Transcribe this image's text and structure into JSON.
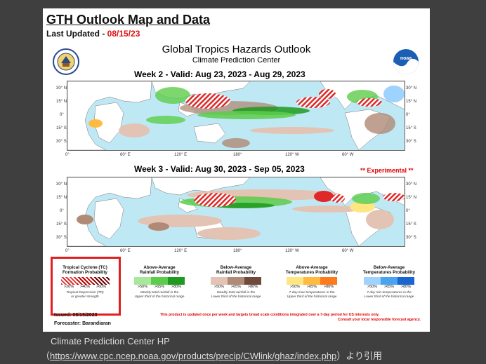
{
  "header": {
    "title": "GTH Outlook Map and Data",
    "last_updated_label": "Last Updated - ",
    "last_updated_date": "08/15/23"
  },
  "map_header": {
    "title": "Global Tropics Hazards Outlook",
    "subtitle": "Climate Prediction Center"
  },
  "week2": {
    "label": "Week 2 - Valid: Aug 23, 2023 - Aug 29, 2023"
  },
  "week3": {
    "label": "Week 3 - Valid: Aug 30, 2023 - Sep 05, 2023",
    "experimental": "** Experimental **"
  },
  "lat_labels": [
    "30° N",
    "15° N",
    "0°",
    "15° S",
    "30° S"
  ],
  "lon_labels": [
    "0°",
    "60° E",
    "120° E",
    "180°",
    "120° W",
    "60° W"
  ],
  "legend": {
    "tc": {
      "title1": "Tropical Cyclone (TC)",
      "title2": "Formation Probability",
      "values": [
        ">20%",
        ">40%",
        ">60%"
      ],
      "note1": "Tropical Depression (TD)",
      "note2": "or greater strength",
      "colors": [
        "#e03030",
        "#c00000",
        "#700000"
      ]
    },
    "above_rain": {
      "title1": "Above-Average",
      "title2": "Rainfall Probability",
      "values": [
        ">50%",
        ">65%",
        ">80%"
      ],
      "note1": "Weekly total rainfall in the",
      "note2": "Upper third of the historical range",
      "colors": [
        "#a8e89a",
        "#5ccd4a",
        "#1e9a1e"
      ]
    },
    "below_rain": {
      "title1": "Below-Average",
      "title2": "Rainfall Probability",
      "values": [
        ">50%",
        ">65%",
        ">80%"
      ],
      "note1": "Weekly total rainfall in the",
      "note2": "Lower third of the historical range",
      "colors": [
        "#e3c3b3",
        "#b08a76",
        "#6e4a3c"
      ]
    },
    "above_temp": {
      "title1": "Above-Average",
      "title2": "Temperatures Probability",
      "values": [
        ">50%",
        ">65%",
        ">80%"
      ],
      "note1": "7-day max temperatures in the",
      "note2": "Upper third of the historical range",
      "colors": [
        "#ffe680",
        "#ffbb40",
        "#ff7a1a"
      ]
    },
    "below_temp": {
      "title1": "Below-Average",
      "title2": "Temperatures Probability",
      "values": [
        ">50%",
        ">65%",
        ">80%"
      ],
      "note1": "7-day min temperatures in the",
      "note2": "Lower third of the historical range",
      "colors": [
        "#9fd3ff",
        "#4aa3f0",
        "#1a66d0"
      ]
    }
  },
  "footer": {
    "issued": "Issued: 08/15/2023",
    "forecaster": "Forecaster: Barandiaran",
    "note1": "This product is updated once per week and targets broad scale conditions integrated over a 7-day period for US interests only.",
    "note2": "Consult your local responsible forecast agency."
  },
  "caption": {
    "line1": "Climate Prediction Center HP",
    "open": "（",
    "url": "https://www.cpc.ncep.noaa.gov/products/precip/CWlink/ghaz/index.php",
    "close": "）より引用"
  },
  "colors": {
    "ocean": "#bfe8f5",
    "land": "#ffffff",
    "tc": "#e02828",
    "above_rain": "#5ccd4a",
    "below_rain": "#b08a76"
  }
}
